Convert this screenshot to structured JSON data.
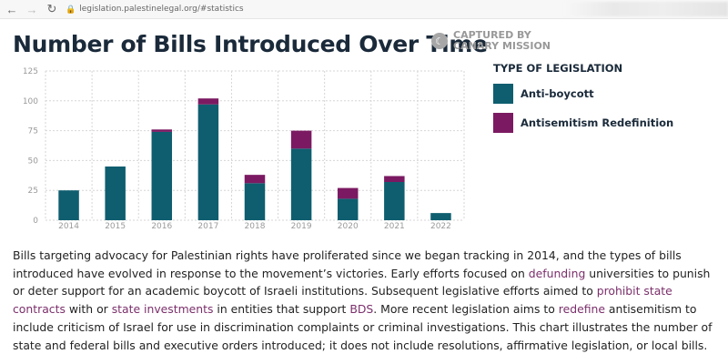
{
  "browser": {
    "url": "legislation.palestinelegal.org/#statistics",
    "back_icon": "arrow-left-icon",
    "forward_icon": "arrow-right-icon",
    "reload_icon": "reload-icon",
    "lock_icon": "lock-icon"
  },
  "page": {
    "captured_line1": "CAPTURED BY",
    "captured_line2": "CANARY MISSION",
    "paragraph": {
      "p1": "Bills targeting advocacy for Palestinian rights have proliferated since we began tracking in 2014, and the types of bills introduced have evolved in response to the movement’s victories. Early efforts focused on ",
      "link1": "defunding",
      "p2": " universities to punish or deter support for an academic boycott of Israeli institutions. Subsequent legislative efforts aimed to ",
      "link2": "prohibit state contracts",
      "p3": " with or ",
      "link3": "state investments",
      "p4": " in entities that support ",
      "link4": "BDS",
      "p5": ". More recent legislation aims to ",
      "link5": "redefine",
      "p6": " antisemitism to include criticism of Israel for use in discrimination complaints or criminal investigations. This chart illustrates the number of state and federal bills and executive orders introduced; it does not include resolutions, affirmative legislation, or local bills."
    }
  },
  "colors": {
    "anti_boycott": "#0e5e6f",
    "antisemitism": "#7b1a62",
    "grid": "#d6d6d6",
    "tick": "#b8b8b8"
  },
  "chart_data": {
    "type": "bar",
    "stacked": true,
    "title": "Number of Bills Introduced Over Time",
    "legend_title": "TYPE OF LEGISLATION",
    "legend_position": "right",
    "categories": [
      "2014",
      "2015",
      "2016",
      "2017",
      "2018",
      "2019",
      "2020",
      "2021",
      "2022"
    ],
    "series": [
      {
        "name": "Anti-boycott",
        "color": "#0e5e6f",
        "values": [
          25,
          45,
          74,
          97,
          31,
          60,
          18,
          32,
          6
        ]
      },
      {
        "name": "Antisemitism Redefinition",
        "color": "#7b1a62",
        "values": [
          0,
          0,
          2,
          5,
          7,
          15,
          9,
          5,
          0
        ]
      }
    ],
    "yticks": [
      "0",
      "25",
      "50",
      "75",
      "100",
      "125"
    ],
    "ylim": [
      0,
      125
    ],
    "grid": true,
    "xlabel": "",
    "ylabel": ""
  }
}
